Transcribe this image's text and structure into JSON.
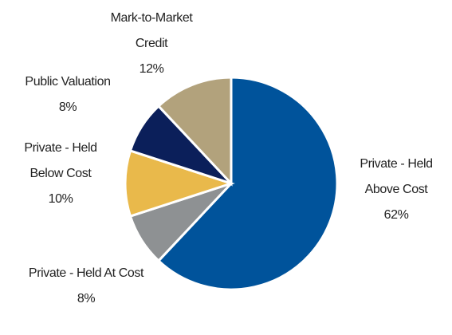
{
  "chart_data": {
    "type": "pie",
    "categories": [
      "Private - Held Above Cost",
      "Private - Held At Cost",
      "Private - Held Below Cost",
      "Public Valuation",
      "Mark-to-Market Credit"
    ],
    "values": [
      62,
      8,
      10,
      8,
      12
    ],
    "value_labels": [
      "62%",
      "8%",
      "10%",
      "8%",
      "12%"
    ],
    "colors": [
      "#00539b",
      "#8e9193",
      "#e9b94b",
      "#0b1f5a",
      "#b2a27c"
    ]
  }
}
